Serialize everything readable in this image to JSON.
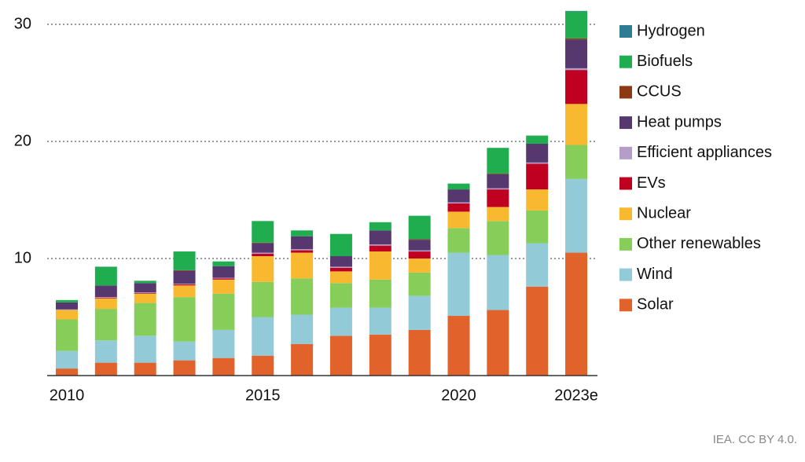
{
  "chart_data": {
    "type": "stacked-bar",
    "categories": [
      "2010",
      null,
      null,
      null,
      null,
      "2015",
      null,
      null,
      null,
      null,
      "2020",
      null,
      null,
      "2023e"
    ],
    "series": [
      {
        "name": "Solar",
        "color": "#e1632b",
        "values": [
          0.6,
          1.1,
          1.1,
          1.3,
          1.5,
          1.7,
          2.7,
          3.4,
          3.5,
          3.9,
          5.1,
          5.6,
          7.6,
          10.5
        ]
      },
      {
        "name": "Wind",
        "color": "#92cad8",
        "values": [
          1.5,
          1.9,
          2.3,
          1.6,
          2.4,
          3.3,
          2.5,
          2.4,
          2.3,
          2.9,
          5.4,
          4.7,
          3.7,
          6.3
        ]
      },
      {
        "name": "Other renewables",
        "color": "#86cd5a",
        "values": [
          2.7,
          2.7,
          2.8,
          3.8,
          3.1,
          3.0,
          3.1,
          2.1,
          2.4,
          2.0,
          2.1,
          2.9,
          2.8,
          2.9
        ]
      },
      {
        "name": "Nuclear",
        "color": "#f8b931",
        "values": [
          0.8,
          0.9,
          0.8,
          1.0,
          1.2,
          2.2,
          2.2,
          1.0,
          2.4,
          1.2,
          1.4,
          1.2,
          1.8,
          3.5
        ]
      },
      {
        "name": "EVs",
        "color": "#c00020",
        "values": [
          0,
          0.05,
          0.05,
          0.1,
          0.1,
          0.2,
          0.2,
          0.3,
          0.5,
          0.6,
          0.7,
          1.5,
          2.2,
          2.9
        ]
      },
      {
        "name": "Efficient appliances",
        "color": "#b49dc7",
        "values": [
          0.05,
          0.05,
          0.05,
          0.05,
          0.05,
          0.1,
          0.1,
          0.1,
          0.1,
          0.1,
          0.1,
          0.1,
          0.1,
          0.15
        ]
      },
      {
        "name": "Heat pumps",
        "color": "#56386f",
        "values": [
          0.6,
          1.0,
          0.8,
          1.1,
          1.0,
          0.8,
          1.1,
          0.9,
          1.2,
          0.9,
          1.1,
          1.2,
          1.6,
          2.45
        ]
      },
      {
        "name": "CCUS",
        "color": "#8b3a14",
        "values": [
          0,
          0,
          0,
          0.05,
          0,
          0.05,
          0,
          0,
          0,
          0.05,
          0,
          0.05,
          0,
          0.1
        ]
      },
      {
        "name": "Biofuels",
        "color": "#1fad50",
        "values": [
          0.2,
          1.6,
          0.2,
          1.6,
          0.4,
          1.85,
          0.5,
          1.9,
          0.7,
          2.0,
          0.5,
          2.2,
          0.7,
          2.3
        ]
      },
      {
        "name": "Hydrogen",
        "color": "#2e7c94",
        "values": [
          0,
          0,
          0,
          0,
          0,
          0,
          0,
          0,
          0,
          0,
          0,
          0,
          0,
          0.05
        ]
      }
    ],
    "ylim": [
      0,
      31.5
    ],
    "yticks": [
      10,
      20,
      30
    ],
    "grid": true,
    "legend": "right",
    "source": "IEA. CC BY 4.0."
  }
}
